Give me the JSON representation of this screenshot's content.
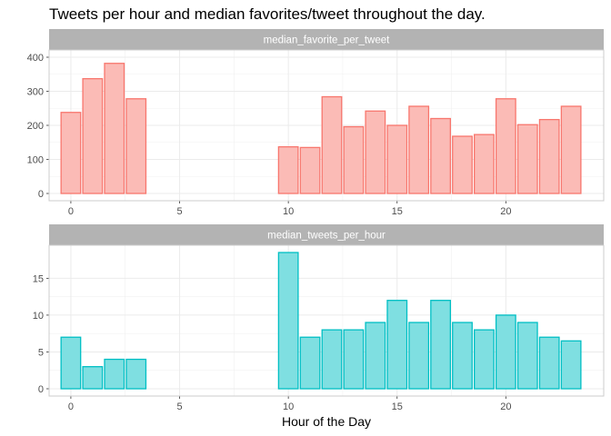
{
  "chart_data": {
    "type": "bar",
    "title": "Tweets per hour and median favorites/tweet throughout the day.",
    "xlabel": "Hour of the Day",
    "x_ticks": [
      0,
      5,
      10,
      15,
      20
    ],
    "xlim": [
      -1,
      24.5
    ],
    "grid": true,
    "facets": [
      {
        "strip_label": "median_favorite_per_tweet",
        "color": "#F8766D",
        "fill": "#FBBBB6",
        "ylim": [
          0,
          400
        ],
        "y_ticks": [
          0,
          100,
          200,
          300,
          400
        ],
        "x": [
          0,
          1,
          2,
          3,
          10,
          11,
          12,
          13,
          14,
          15,
          16,
          17,
          18,
          19,
          20,
          21,
          22,
          23
        ],
        "values": [
          238,
          337,
          382,
          278,
          137,
          135,
          284,
          196,
          242,
          200,
          256,
          220,
          168,
          173,
          278,
          202,
          217,
          256
        ]
      },
      {
        "strip_label": "median_tweets_per_hour",
        "color": "#00BFC4",
        "fill": "#7FDFE1",
        "ylim": [
          0,
          18.5
        ],
        "y_ticks": [
          0,
          5,
          10,
          15
        ],
        "x": [
          0,
          1,
          2,
          3,
          10,
          11,
          12,
          13,
          14,
          15,
          16,
          17,
          18,
          19,
          20,
          21,
          22,
          23
        ],
        "values": [
          7,
          3,
          4,
          4,
          18.5,
          7,
          8,
          8,
          9,
          12,
          9,
          12,
          9,
          8,
          10,
          9,
          7,
          6.5
        ]
      }
    ]
  }
}
